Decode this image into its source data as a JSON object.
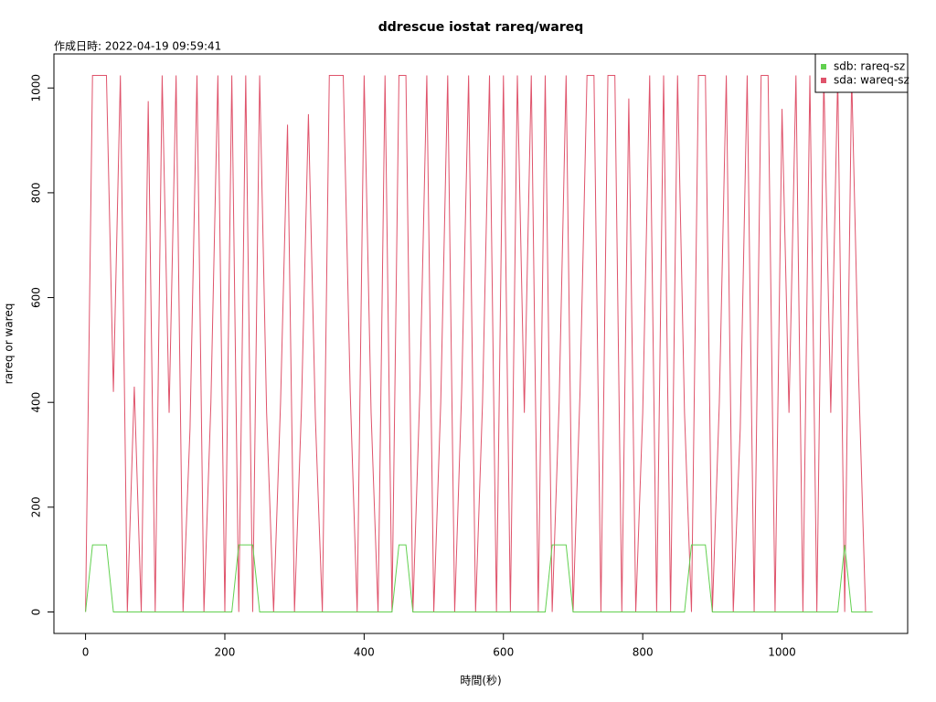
{
  "chart_data": {
    "type": "line",
    "title": "ddrescue iostat rareq/wareq",
    "subtitle": "作成日時: 2022-04-19 09:59:41",
    "x_label": "時間(秒)",
    "y_label": "rareq or wareq",
    "x": [
      0,
      10,
      20,
      30,
      40,
      50,
      60,
      70,
      80,
      90,
      100,
      110,
      120,
      130,
      140,
      150,
      160,
      170,
      180,
      190,
      200,
      210,
      220,
      230,
      240,
      250,
      260,
      270,
      280,
      290,
      300,
      310,
      320,
      330,
      340,
      350,
      360,
      370,
      380,
      390,
      400,
      410,
      420,
      430,
      440,
      450,
      460,
      470,
      480,
      490,
      500,
      510,
      520,
      530,
      540,
      550,
      560,
      570,
      580,
      590,
      600,
      610,
      620,
      630,
      640,
      650,
      660,
      670,
      680,
      690,
      700,
      710,
      720,
      730,
      740,
      750,
      760,
      770,
      780,
      790,
      800,
      810,
      820,
      830,
      840,
      850,
      860,
      870,
      880,
      890,
      900,
      910,
      920,
      930,
      940,
      950,
      960,
      970,
      980,
      990,
      1000,
      1010,
      1020,
      1030,
      1040,
      1050,
      1060,
      1070,
      1080,
      1090,
      1100,
      1110,
      1120,
      1130
    ],
    "series": [
      {
        "name": "sdb: rareq-sz",
        "color": "#61D04F",
        "values": [
          0,
          128,
          128,
          128,
          0,
          0,
          0,
          0,
          0,
          0,
          0,
          0,
          0,
          0,
          0,
          0,
          0,
          0,
          0,
          0,
          0,
          0,
          128,
          128,
          128,
          0,
          0,
          0,
          0,
          0,
          0,
          0,
          0,
          0,
          0,
          0,
          0,
          0,
          0,
          0,
          0,
          0,
          0,
          0,
          0,
          128,
          128,
          0,
          0,
          0,
          0,
          0,
          0,
          0,
          0,
          0,
          0,
          0,
          0,
          0,
          0,
          0,
          0,
          0,
          0,
          0,
          0,
          128,
          128,
          128,
          0,
          0,
          0,
          0,
          0,
          0,
          0,
          0,
          0,
          0,
          0,
          0,
          0,
          0,
          0,
          0,
          0,
          128,
          128,
          128,
          0,
          0,
          0,
          0,
          0,
          0,
          0,
          0,
          0,
          0,
          0,
          0,
          0,
          0,
          0,
          0,
          0,
          0,
          0,
          128,
          0,
          0,
          0,
          0
        ]
      },
      {
        "name": "sda: wareq-sz",
        "color": "#DF536B",
        "values": [
          0,
          1024,
          1024,
          1024,
          420,
          1024,
          0,
          430,
          0,
          975,
          0,
          1024,
          380,
          1024,
          0,
          350,
          1024,
          0,
          400,
          1024,
          0,
          1024,
          0,
          1024,
          0,
          1024,
          380,
          0,
          400,
          930,
          0,
          390,
          950,
          370,
          0,
          1024,
          1024,
          1024,
          420,
          0,
          1024,
          380,
          0,
          1024,
          0,
          1024,
          1024,
          0,
          420,
          1024,
          0,
          400,
          1024,
          0,
          420,
          1024,
          0,
          400,
          1024,
          0,
          1024,
          0,
          1024,
          380,
          1024,
          0,
          1024,
          0,
          400,
          1024,
          0,
          420,
          1024,
          1024,
          0,
          1024,
          1024,
          0,
          980,
          0,
          380,
          1024,
          0,
          1024,
          0,
          1024,
          380,
          0,
          1024,
          1024,
          0,
          400,
          1024,
          0,
          350,
          1024,
          0,
          1024,
          1024,
          0,
          960,
          380,
          1024,
          0,
          1024,
          0,
          1024,
          380,
          1024,
          0,
          1024,
          450,
          0,
          0
        ]
      }
    ],
    "xlim": [
      -45.4,
      1180.4
    ],
    "ylim": [
      -41,
      1065
    ],
    "xticks": [
      0,
      200,
      400,
      600,
      800,
      1000
    ],
    "yticks": [
      0,
      200,
      400,
      600,
      800,
      1000
    ],
    "legend": "top-right"
  }
}
